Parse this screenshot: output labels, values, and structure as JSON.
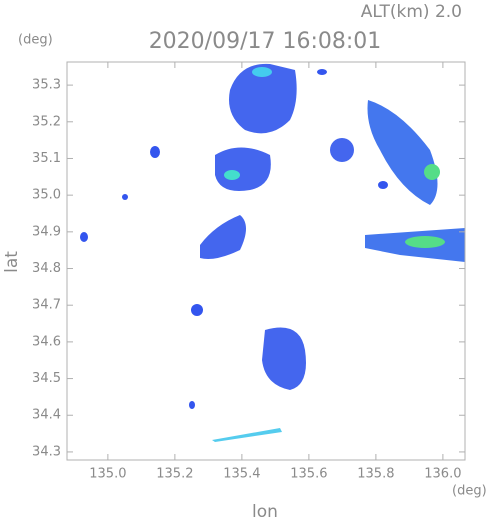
{
  "chart_data": {
    "type": "map",
    "title": "2020/09/17 16:08:01",
    "annotation": "ALT(km)  2.0",
    "x_label": "lon",
    "y_label": "lat",
    "x_unit": "(deg)",
    "y_unit": "(deg)",
    "xlim": [
      134.878,
      136.066
    ],
    "ylim": [
      34.278,
      35.363
    ],
    "xticks": [
      {
        "value": 135.0,
        "label": "135.0"
      },
      135.2,
      135.4,
      135.6,
      135.8,
      {
        "value": 136.0,
        "label": "136.0"
      }
    ],
    "yticks": [
      34.3,
      34.4,
      34.5,
      34.6,
      34.7,
      34.8,
      34.9,
      {
        "value": 35.0,
        "label": "35.0"
      },
      35.1,
      35.2,
      35.3
    ]
  }
}
